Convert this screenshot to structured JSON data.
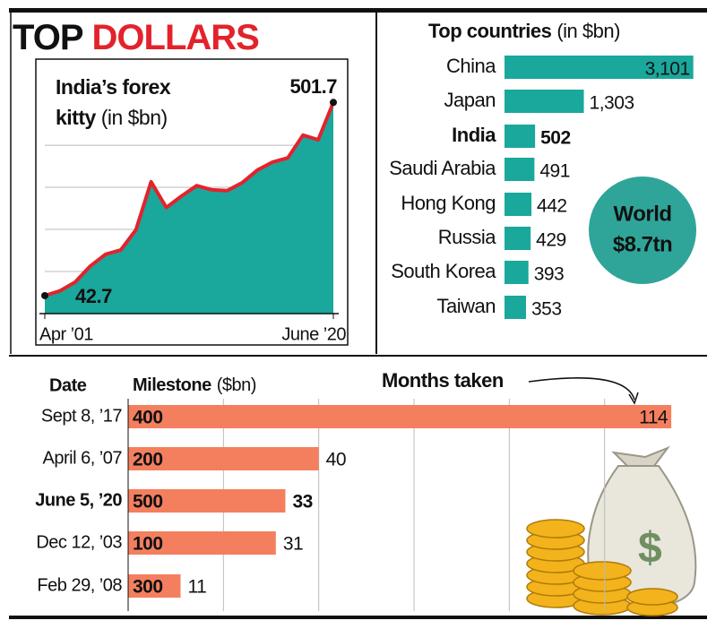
{
  "header": {
    "title": [
      "TOP",
      "DOLLARS"
    ]
  },
  "chart_data": [
    {
      "type": "area",
      "title": "India’s forex kitty",
      "subtitle": "(in $bn)",
      "categories": [
        "Apr ’01",
        null,
        null,
        null,
        null,
        null,
        null,
        null,
        null,
        null,
        null,
        null,
        null,
        null,
        null,
        null,
        null,
        null,
        null,
        "June ’20"
      ],
      "values": [
        42.7,
        54,
        75,
        113,
        141,
        151,
        199,
        313,
        252,
        279,
        304,
        294,
        292,
        311,
        341,
        360,
        370,
        424,
        413,
        501.7
      ],
      "color": "#1aa79c",
      "line_color": "#e3232c",
      "ylim": [
        0,
        530
      ],
      "grid_lines": [
        100,
        200,
        300,
        400
      ]
    },
    {
      "type": "bar",
      "orientation": "horizontal",
      "title": "Top countries",
      "subtitle": "(in $bn)",
      "categories": [
        "China",
        "Japan",
        "India",
        "Saudi Arabia",
        "Hong Kong",
        "Russia",
        "South Korea",
        "Taiwan"
      ],
      "values": [
        3101,
        1303,
        502,
        491,
        442,
        429,
        393,
        353
      ],
      "value_labels": [
        "3,101",
        "1,303",
        "502",
        "491",
        "442",
        "429",
        "393",
        "353"
      ],
      "color": "#1aa79c",
      "xlim": [
        0,
        3150
      ],
      "highlight_index": 2,
      "annotation": [
        "World",
        "$8.7tn"
      ]
    },
    {
      "type": "bar",
      "orientation": "horizontal",
      "category_header": "Date",
      "milestone_header": "Milestone",
      "milestone_unit": "($bn)",
      "annotation": "Months taken",
      "categories": [
        "Sept 8, ’17",
        "April 6, ’07",
        "June 5, ’20",
        "Dec 12, ’03",
        "Feb 29, ’08"
      ],
      "milestones": [
        400,
        200,
        500,
        100,
        300
      ],
      "values": [
        114,
        40,
        33,
        31,
        11
      ],
      "color": "#f47f5e",
      "xlim": [
        0,
        120
      ],
      "grid_lines": [
        20,
        40,
        60,
        80,
        100
      ],
      "highlight_index": 2
    }
  ]
}
